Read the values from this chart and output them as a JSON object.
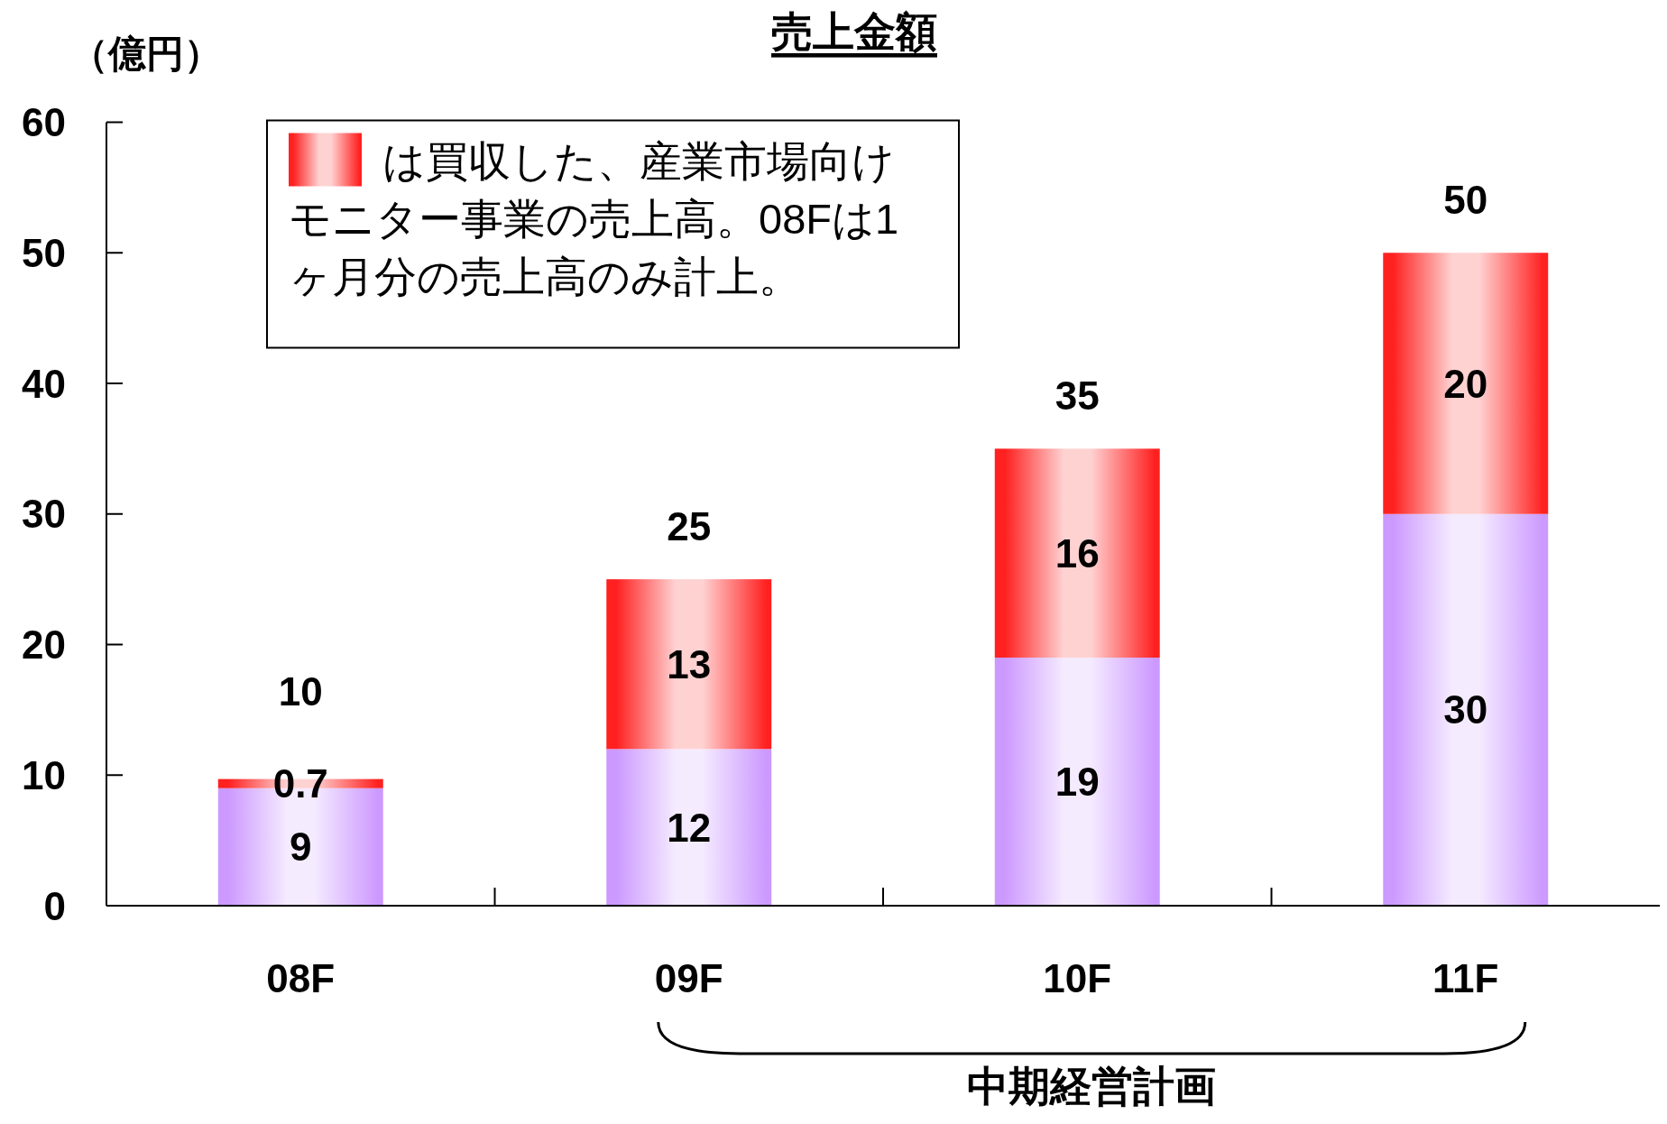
{
  "chart_data": {
    "type": "bar",
    "title": "売上金額",
    "ylabel": "（億円）",
    "categories": [
      "08F",
      "09F",
      "10F",
      "11F"
    ],
    "stacked": true,
    "series": [
      {
        "color": "#cc99ff",
        "values": [
          9,
          12,
          19,
          30
        ]
      },
      {
        "name": "は買収した、産業市場向けモニター事業の売上高。08Fは1ヶ月分の売上高のみ計上。",
        "color": "#ff2020",
        "values": [
          0.7,
          13,
          16,
          20
        ]
      }
    ],
    "ylim": [
      0,
      60
    ],
    "yticks": [
      0,
      10,
      20,
      30,
      40,
      50,
      60
    ],
    "data_labels": true,
    "totals": [
      "10",
      "25",
      "35",
      "50"
    ],
    "legend": "top left",
    "annotations": [
      "中期経営計画"
    ]
  }
}
